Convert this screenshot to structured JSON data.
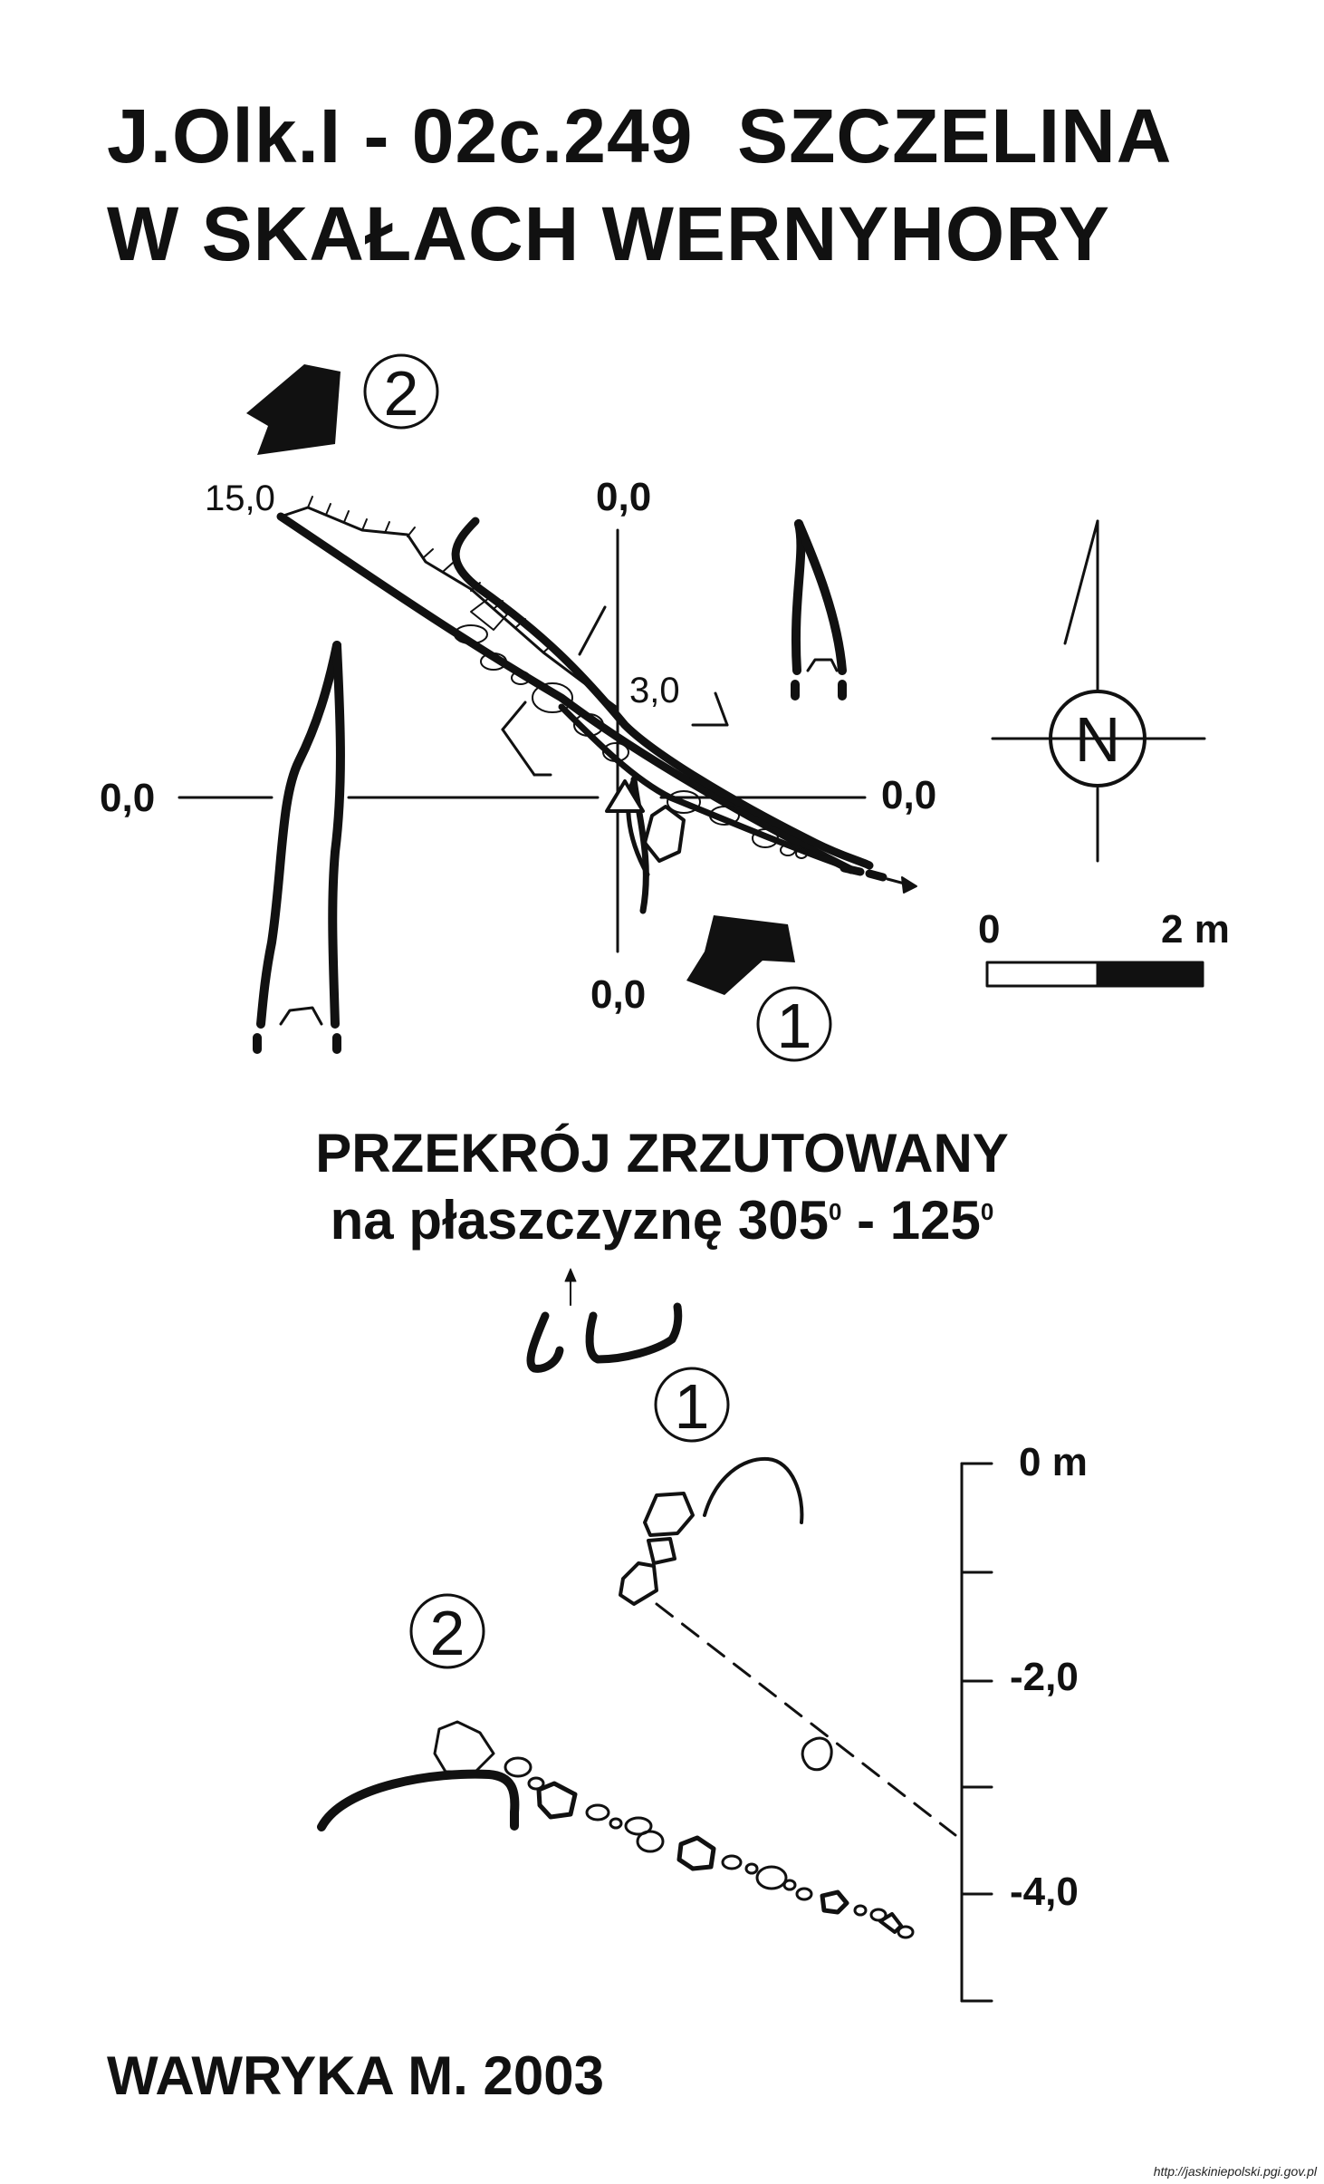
{
  "title": {
    "line1": "J.Olk.I - 02c.249  SZCZELINA",
    "line2": "W SKAŁACH WERNYHORY"
  },
  "plan": {
    "entrance_1": "1",
    "entrance_2": "2",
    "label_15": "15,0",
    "label_3": "3,0",
    "label_top": "0,0",
    "label_left": "0,0",
    "label_right": "0,0",
    "label_bottom": "0,0",
    "north": "N",
    "scale_start": "0",
    "scale_end": "2 m"
  },
  "section": {
    "title_line1": "PRZEKRÓJ ZRZUTOWANY",
    "title_line2_a": "na płaszczyznę 305",
    "title_line2_deg1": "0",
    "title_line2_b": " - 125",
    "title_line2_deg2": "0",
    "entrance_1": "1",
    "entrance_2": "2",
    "depth_0": "0 m",
    "depth_2": "-2,0",
    "depth_4": "-4,0"
  },
  "author": "WAWRYKA M. 2003",
  "footer_url": "http://jaskiniepolski.pgi.gov.pl",
  "colors": {
    "ink": "#111111",
    "paper": "#ffffff"
  }
}
